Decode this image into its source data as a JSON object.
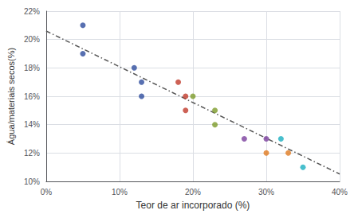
{
  "chart_data": {
    "type": "scatter",
    "xlabel": "Teor de ar incorporado (%)",
    "ylabel": "Água/materiais secos(%)",
    "grid": true,
    "xlim": [
      0.0,
      0.4
    ],
    "ylim": [
      0.1,
      0.22
    ],
    "xticks": [
      {
        "value": 0.0,
        "label": "0%"
      },
      {
        "value": 0.1,
        "label": "10%"
      },
      {
        "value": 0.2,
        "label": "20%"
      },
      {
        "value": 0.3,
        "label": "30%"
      },
      {
        "value": 0.4,
        "label": "40%"
      }
    ],
    "yticks": [
      {
        "value": 0.1,
        "label": "10%"
      },
      {
        "value": 0.12,
        "label": "12%"
      },
      {
        "value": 0.14,
        "label": "14%"
      },
      {
        "value": 0.16,
        "label": "16%"
      },
      {
        "value": 0.18,
        "label": "18%"
      },
      {
        "value": 0.2,
        "label": "20%"
      },
      {
        "value": 0.22,
        "label": "22%"
      }
    ],
    "series": [
      {
        "type": "scatter",
        "marker": "circle",
        "x": [
          0.05,
          0.05,
          0.12,
          0.13,
          0.13,
          0.18,
          0.19,
          0.19,
          0.2,
          0.23,
          0.23,
          0.27,
          0.3,
          0.3,
          0.33,
          0.32,
          0.35
        ],
        "values": [
          0.21,
          0.19,
          0.18,
          0.17,
          0.16,
          0.17,
          0.16,
          0.15,
          0.16,
          0.15,
          0.14,
          0.13,
          0.13,
          0.12,
          0.12,
          0.13,
          0.11
        ],
        "colors": [
          "#2E4C9E",
          "#2E4C9E",
          "#2E4C9E",
          "#2E4C9E",
          "#2E4C9E",
          "#C0392B",
          "#C0392B",
          "#C0392B",
          "#7D9B2A",
          "#7D9B2A",
          "#7D9B2A",
          "#7B3F9E",
          "#7B3F9E",
          "#E07B20",
          "#E07B20",
          "#1AAFC0",
          "#1AAFC0"
        ]
      },
      {
        "type": "line",
        "x": [
          0.0,
          0.4
        ],
        "values": [
          0.206,
          0.1052
        ],
        "color": "#555555",
        "line_style": "dashdot"
      }
    ]
  }
}
